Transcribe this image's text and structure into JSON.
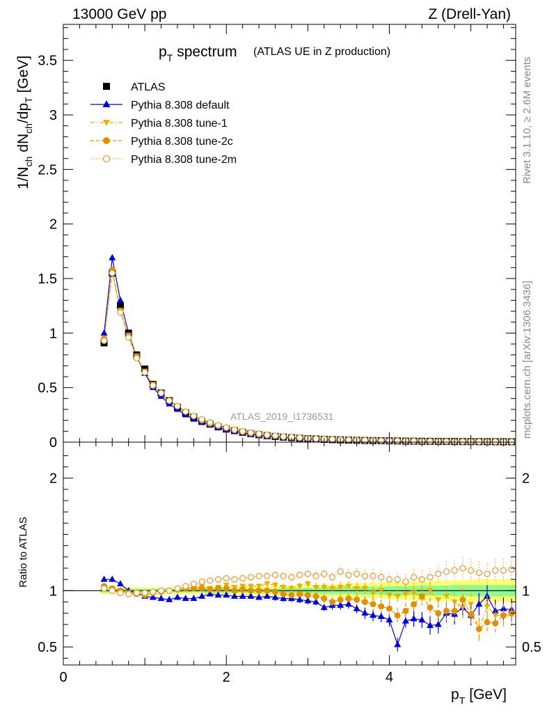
{
  "header": {
    "left": "13000 GeV pp",
    "right": "Z (Drell-Yan)"
  },
  "side_labels": {
    "rivet": "Rivet 3.1.10, ≥ 2.6M events",
    "mcplots": "mcplots.cern.ch [arXiv:1306.3436]"
  },
  "colors": {
    "data": "#000000",
    "default": "#0000d0",
    "tune1": "#e8b000",
    "tune2c": "#e09000",
    "tune2m": "#e0a040",
    "band_yellow": "#ffff70",
    "band_green": "#90f890"
  },
  "chart_data": [
    {
      "type": "scatter",
      "panel": "main",
      "title": "p_T spectrum (ATLAS UE in Z production)",
      "title_main": "p",
      "title_sub": "T",
      "title_word": "spectrum",
      "title_extra": "(ATLAS UE in Z production)",
      "ylabel": "1/N_ch dN_ch/dp_T [GeV]",
      "xlim": [
        0,
        5.55
      ],
      "ylim": [
        0,
        3.83
      ],
      "yticks": [
        0,
        0.5,
        1,
        1.5,
        2,
        2.5,
        3,
        3.5
      ],
      "ytick_labels": [
        "0",
        "0.5",
        "1",
        "1.5",
        "2",
        "2.5",
        "3",
        "3.5"
      ],
      "watermark": "ATLAS_2019_I1736531",
      "x": [
        0.5,
        0.6,
        0.7,
        0.8,
        0.9,
        1.0,
        1.1,
        1.2,
        1.3,
        1.4,
        1.5,
        1.6,
        1.7,
        1.8,
        1.9,
        2.0,
        2.1,
        2.2,
        2.3,
        2.4,
        2.5,
        2.6,
        2.7,
        2.8,
        2.9,
        3.0,
        3.1,
        3.2,
        3.3,
        3.4,
        3.5,
        3.6,
        3.7,
        3.8,
        3.9,
        4.0,
        4.1,
        4.2,
        4.3,
        4.4,
        4.5,
        4.6,
        4.7,
        4.8,
        4.9,
        5.0,
        5.1,
        5.2,
        5.3,
        5.4,
        5.5
      ],
      "series": [
        {
          "name": "ATLAS",
          "key": "data",
          "marker": "square",
          "values": [
            0.91,
            1.55,
            1.25,
            1.0,
            0.8,
            0.67,
            0.53,
            0.45,
            0.38,
            0.32,
            0.27,
            0.23,
            0.19,
            0.165,
            0.14,
            0.12,
            0.105,
            0.09,
            0.078,
            0.068,
            0.059,
            0.052,
            0.046,
            0.041,
            0.036,
            0.032,
            0.029,
            0.026,
            0.023,
            0.021,
            0.019,
            0.017,
            0.015,
            0.014,
            0.013,
            0.012,
            0.011,
            0.0095,
            0.0088,
            0.008,
            0.0074,
            0.0068,
            0.0062,
            0.0057,
            0.0052,
            0.0048,
            0.0044,
            0.0041,
            0.0038,
            0.0035,
            0.0033
          ]
        },
        {
          "name": "Pythia 8.308 default",
          "key": "default",
          "marker": "triangle-up",
          "values": [
            1.0,
            1.69,
            1.3,
            1.0,
            0.78,
            0.63,
            0.5,
            0.42,
            0.35,
            0.3,
            0.25,
            0.21,
            0.18,
            0.16,
            0.135,
            0.115,
            0.1,
            0.085,
            0.074,
            0.064,
            0.056,
            0.049,
            0.043,
            0.038,
            0.033,
            0.029,
            0.026,
            0.023,
            0.02,
            0.018,
            0.016,
            0.014,
            0.012,
            0.011,
            0.01,
            0.009,
            0.008,
            0.007,
            0.0065,
            0.006,
            0.0055,
            0.005,
            0.0045,
            0.0042,
            0.0038,
            0.0035,
            0.0032,
            0.003,
            0.0028,
            0.0026,
            0.0024
          ]
        },
        {
          "name": "Pythia 8.308 tune-1",
          "key": "tune1",
          "marker": "triangle-down",
          "values": [
            0.94,
            1.57,
            1.21,
            0.98,
            0.79,
            0.65,
            0.53,
            0.45,
            0.38,
            0.33,
            0.28,
            0.24,
            0.2,
            0.17,
            0.15,
            0.13,
            0.11,
            0.095,
            0.082,
            0.072,
            0.063,
            0.055,
            0.048,
            0.043,
            0.038,
            0.034,
            0.03,
            0.027,
            0.024,
            0.022,
            0.02,
            0.018,
            0.016,
            0.015,
            0.013,
            0.012,
            0.011,
            0.01,
            0.009,
            0.0082,
            0.0075,
            0.007,
            0.0064,
            0.0058,
            0.0054,
            0.005,
            0.0046,
            0.0043,
            0.004,
            0.0037,
            0.0034
          ]
        },
        {
          "name": "Pythia 8.308 tune-2c",
          "key": "tune2c",
          "marker": "circle",
          "values": [
            0.95,
            1.58,
            1.2,
            0.97,
            0.78,
            0.64,
            0.52,
            0.45,
            0.38,
            0.33,
            0.28,
            0.24,
            0.2,
            0.17,
            0.15,
            0.13,
            0.11,
            0.094,
            0.082,
            0.071,
            0.062,
            0.055,
            0.048,
            0.043,
            0.038,
            0.034,
            0.03,
            0.027,
            0.024,
            0.022,
            0.02,
            0.018,
            0.016,
            0.015,
            0.013,
            0.012,
            0.011,
            0.01,
            0.009,
            0.0082,
            0.0075,
            0.007,
            0.0064,
            0.0058,
            0.0054,
            0.005,
            0.0046,
            0.0043,
            0.004,
            0.0037,
            0.0034
          ]
        },
        {
          "name": "Pythia 8.308 tune-2m",
          "key": "tune2m",
          "marker": "open-circle",
          "values": [
            0.93,
            1.55,
            1.19,
            0.96,
            0.77,
            0.64,
            0.52,
            0.45,
            0.38,
            0.33,
            0.28,
            0.24,
            0.21,
            0.18,
            0.155,
            0.135,
            0.115,
            0.1,
            0.088,
            0.077,
            0.067,
            0.059,
            0.052,
            0.046,
            0.041,
            0.036,
            0.032,
            0.029,
            0.026,
            0.023,
            0.021,
            0.019,
            0.017,
            0.016,
            0.014,
            0.013,
            0.012,
            0.011,
            0.01,
            0.009,
            0.0082,
            0.0075,
            0.007,
            0.0064,
            0.0058,
            0.0054,
            0.005,
            0.0046,
            0.0043,
            0.004,
            0.0037
          ]
        }
      ]
    },
    {
      "type": "line",
      "panel": "ratio",
      "ylabel": "Ratio to ATLAS",
      "xlabel": "p_T [GeV]",
      "xlabel_main": "p",
      "xlabel_sub": "T",
      "xlabel_unit": "[GeV]",
      "xlim": [
        0,
        5.55
      ],
      "ylim": [
        0.34,
        2.32
      ],
      "xticks": [
        0,
        2,
        4
      ],
      "xtick_labels": [
        "0",
        "2",
        "4"
      ],
      "yticks": [
        0.5,
        1,
        2
      ],
      "ytick_labels": [
        "0.5",
        "1",
        "2"
      ],
      "x": [
        0.5,
        0.6,
        0.7,
        0.8,
        0.9,
        1.0,
        1.1,
        1.2,
        1.3,
        1.4,
        1.5,
        1.6,
        1.7,
        1.8,
        1.9,
        2.0,
        2.1,
        2.2,
        2.3,
        2.4,
        2.5,
        2.6,
        2.7,
        2.8,
        2.9,
        3.0,
        3.1,
        3.2,
        3.3,
        3.4,
        3.5,
        3.6,
        3.7,
        3.8,
        3.9,
        4.0,
        4.1,
        4.2,
        4.3,
        4.4,
        4.5,
        4.6,
        4.7,
        4.8,
        4.9,
        5.0,
        5.1,
        5.2,
        5.3,
        5.4,
        5.5
      ],
      "band_yellow_halfwidth": [
        0.03,
        0.03,
        0.03,
        0.03,
        0.03,
        0.03,
        0.03,
        0.03,
        0.03,
        0.03,
        0.03,
        0.03,
        0.03,
        0.035,
        0.035,
        0.035,
        0.035,
        0.04,
        0.04,
        0.04,
        0.04,
        0.045,
        0.045,
        0.045,
        0.05,
        0.05,
        0.05,
        0.055,
        0.055,
        0.06,
        0.06,
        0.065,
        0.065,
        0.07,
        0.07,
        0.075,
        0.075,
        0.08,
        0.08,
        0.085,
        0.085,
        0.09,
        0.09,
        0.09,
        0.095,
        0.095,
        0.1,
        0.1,
        0.1,
        0.1,
        0.1
      ],
      "band_green_halfwidth": [
        0.015,
        0.015,
        0.015,
        0.015,
        0.015,
        0.015,
        0.015,
        0.015,
        0.015,
        0.015,
        0.015,
        0.015,
        0.015,
        0.02,
        0.02,
        0.02,
        0.02,
        0.02,
        0.02,
        0.02,
        0.02,
        0.02,
        0.025,
        0.025,
        0.025,
        0.025,
        0.025,
        0.03,
        0.03,
        0.03,
        0.03,
        0.035,
        0.035,
        0.035,
        0.035,
        0.04,
        0.04,
        0.04,
        0.04,
        0.045,
        0.045,
        0.045,
        0.045,
        0.05,
        0.05,
        0.05,
        0.05,
        0.05,
        0.05,
        0.05,
        0.05
      ],
      "series": [
        {
          "name": "Pythia 8.308 default",
          "key": "default",
          "marker": "triangle-up",
          "style": "solid",
          "values": [
            1.1,
            1.1,
            1.06,
            1.0,
            0.98,
            0.95,
            0.94,
            0.93,
            0.92,
            0.94,
            0.93,
            0.93,
            0.95,
            0.97,
            0.96,
            0.96,
            0.95,
            0.95,
            0.95,
            0.94,
            0.95,
            0.94,
            0.93,
            0.93,
            0.92,
            0.91,
            0.9,
            0.85,
            0.87,
            0.87,
            0.88,
            0.84,
            0.8,
            0.78,
            0.77,
            0.74,
            0.52,
            0.73,
            0.75,
            0.74,
            0.69,
            0.7,
            0.8,
            0.79,
            0.85,
            0.78,
            0.88,
            0.95,
            0.82,
            0.84,
            0.83
          ],
          "errors": [
            0.02,
            0.02,
            0.02,
            0.02,
            0.02,
            0.02,
            0.02,
            0.02,
            0.02,
            0.02,
            0.02,
            0.02,
            0.02,
            0.02,
            0.02,
            0.02,
            0.02,
            0.02,
            0.02,
            0.02,
            0.02,
            0.03,
            0.03,
            0.03,
            0.03,
            0.03,
            0.03,
            0.03,
            0.04,
            0.04,
            0.04,
            0.04,
            0.05,
            0.05,
            0.05,
            0.06,
            0.06,
            0.06,
            0.07,
            0.07,
            0.08,
            0.08,
            0.08,
            0.09,
            0.09,
            0.09,
            0.1,
            0.1,
            0.1,
            0.1,
            0.1
          ]
        },
        {
          "name": "Pythia 8.308 tune-1",
          "key": "tune1",
          "marker": "triangle-down",
          "style": "dashdot",
          "values": [
            1.03,
            1.02,
            1.0,
            0.98,
            0.98,
            0.97,
            0.99,
            1.0,
            1.0,
            1.01,
            1.02,
            1.03,
            1.04,
            1.02,
            1.03,
            1.05,
            1.03,
            1.04,
            1.04,
            1.04,
            1.06,
            1.05,
            1.03,
            1.02,
            1.04,
            1.06,
            1.03,
            1.03,
            1.02,
            1.03,
            1.04,
            1.02,
            1.02,
            0.98,
            1.0,
            0.96,
            0.95,
            0.97,
            0.98,
            0.95,
            1.0,
            0.92,
            0.95,
            0.9,
            0.85,
            0.88,
            0.65,
            0.86,
            0.78,
            0.78,
            0.78
          ],
          "errors": [
            0.02,
            0.02,
            0.02,
            0.02,
            0.02,
            0.02,
            0.02,
            0.02,
            0.02,
            0.02,
            0.02,
            0.02,
            0.02,
            0.02,
            0.02,
            0.02,
            0.02,
            0.02,
            0.02,
            0.02,
            0.03,
            0.03,
            0.03,
            0.03,
            0.03,
            0.03,
            0.04,
            0.04,
            0.04,
            0.05,
            0.05,
            0.05,
            0.05,
            0.06,
            0.06,
            0.06,
            0.07,
            0.07,
            0.07,
            0.08,
            0.08,
            0.08,
            0.09,
            0.09,
            0.1,
            0.1,
            0.1,
            0.1,
            0.1,
            0.1,
            0.1
          ]
        },
        {
          "name": "Pythia 8.308 tune-2c",
          "key": "tune2c",
          "marker": "circle",
          "style": "dashed",
          "values": [
            1.04,
            1.02,
            1.0,
            0.98,
            0.97,
            0.96,
            0.98,
            0.99,
            1.0,
            1.01,
            1.02,
            1.02,
            1.02,
            1.01,
            1.02,
            1.02,
            1.0,
            1.01,
            1.0,
            1.0,
            1.0,
            0.99,
            0.97,
            0.96,
            0.97,
            0.96,
            0.95,
            0.93,
            0.9,
            0.92,
            0.93,
            0.92,
            0.9,
            0.88,
            0.86,
            0.84,
            0.78,
            0.82,
            0.88,
            0.95,
            0.85,
            0.8,
            0.82,
            0.82,
            0.92,
            0.79,
            0.66,
            0.72,
            0.71,
            0.78,
            0.8
          ],
          "errors": [
            0.02,
            0.02,
            0.02,
            0.02,
            0.02,
            0.02,
            0.02,
            0.02,
            0.02,
            0.02,
            0.02,
            0.02,
            0.02,
            0.02,
            0.02,
            0.02,
            0.02,
            0.02,
            0.02,
            0.02,
            0.03,
            0.03,
            0.03,
            0.03,
            0.03,
            0.03,
            0.04,
            0.04,
            0.04,
            0.05,
            0.05,
            0.05,
            0.05,
            0.06,
            0.06,
            0.06,
            0.07,
            0.07,
            0.07,
            0.08,
            0.08,
            0.08,
            0.09,
            0.09,
            0.1,
            0.1,
            0.1,
            0.1,
            0.1,
            0.1,
            0.1
          ]
        },
        {
          "name": "Pythia 8.308 tune-2m",
          "key": "tune2m",
          "marker": "open-circle",
          "style": "dotted",
          "values": [
            1.02,
            1.0,
            0.98,
            0.97,
            0.98,
            0.98,
            0.99,
            1.0,
            1.0,
            1.02,
            1.04,
            1.06,
            1.08,
            1.09,
            1.1,
            1.11,
            1.1,
            1.11,
            1.12,
            1.13,
            1.13,
            1.14,
            1.13,
            1.12,
            1.14,
            1.15,
            1.13,
            1.15,
            1.12,
            1.17,
            1.14,
            1.15,
            1.13,
            1.13,
            1.12,
            1.1,
            1.1,
            1.08,
            1.12,
            1.1,
            1.12,
            1.15,
            1.17,
            1.18,
            1.2,
            1.18,
            1.16,
            1.15,
            1.18,
            1.18,
            1.19
          ],
          "errors": [
            0.02,
            0.02,
            0.02,
            0.02,
            0.02,
            0.02,
            0.02,
            0.02,
            0.02,
            0.02,
            0.02,
            0.02,
            0.02,
            0.02,
            0.02,
            0.02,
            0.02,
            0.02,
            0.02,
            0.02,
            0.03,
            0.03,
            0.03,
            0.03,
            0.03,
            0.03,
            0.04,
            0.04,
            0.04,
            0.05,
            0.05,
            0.05,
            0.05,
            0.06,
            0.06,
            0.06,
            0.07,
            0.07,
            0.07,
            0.08,
            0.08,
            0.08,
            0.09,
            0.09,
            0.1,
            0.1,
            0.1,
            0.1,
            0.1,
            0.1,
            0.1
          ]
        }
      ]
    }
  ]
}
